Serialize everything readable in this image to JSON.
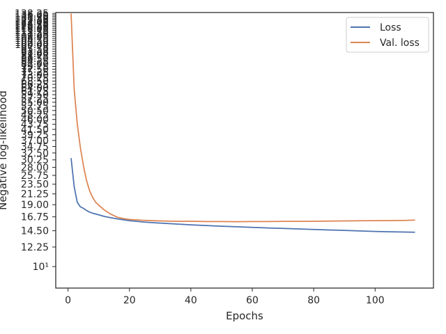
{
  "chart_data": {
    "type": "line",
    "xlabel": "Epochs",
    "ylabel": "Negative log-likelihood",
    "yscale": "log",
    "xlim": [
      -4,
      119
    ],
    "ylim": [
      8.0,
      139.5
    ],
    "xticks": [
      0,
      20,
      40,
      60,
      80,
      100
    ],
    "yticks": [
      {
        "value": 10,
        "label": "10¹"
      },
      {
        "value": 12.25,
        "label": "12.25"
      },
      {
        "value": 14.5,
        "label": "14.50"
      },
      {
        "value": 16.75,
        "label": "16.75"
      },
      {
        "value": 19.0,
        "label": "19.00"
      },
      {
        "value": 21.25,
        "label": "21.25"
      },
      {
        "value": 23.5,
        "label": "23.50"
      },
      {
        "value": 25.75,
        "label": "25.75"
      },
      {
        "value": 28.0,
        "label": "28.00"
      },
      {
        "value": 30.25,
        "label": "30.25"
      },
      {
        "value": 32.5,
        "label": "32.50"
      },
      {
        "value": 34.75,
        "label": "34.75"
      },
      {
        "value": 37.0,
        "label": "37.00"
      },
      {
        "value": 39.25,
        "label": "39.25"
      },
      {
        "value": 41.5,
        "label": "41.50"
      },
      {
        "value": 43.75,
        "label": "43.75"
      },
      {
        "value": 46.0,
        "label": "46.00"
      },
      {
        "value": 48.25,
        "label": "48.25"
      },
      {
        "value": 50.5,
        "label": "50.50"
      },
      {
        "value": 52.75,
        "label": "52.75"
      },
      {
        "value": 55.0,
        "label": "55.00"
      },
      {
        "value": 57.25,
        "label": "57.25"
      },
      {
        "value": 59.5,
        "label": "59.50"
      },
      {
        "value": 61.75,
        "label": "61.75"
      },
      {
        "value": 64.0,
        "label": "64.00"
      },
      {
        "value": 66.25,
        "label": "66.25"
      },
      {
        "value": 68.5,
        "label": "68.50"
      },
      {
        "value": 70.75,
        "label": "70.75"
      },
      {
        "value": 73.0,
        "label": "73.00"
      },
      {
        "value": 75.25,
        "label": "75.25"
      },
      {
        "value": 77.5,
        "label": "77.50"
      },
      {
        "value": 79.75,
        "label": "79.75"
      },
      {
        "value": 82.0,
        "label": "82.00"
      },
      {
        "value": 84.25,
        "label": "84.25"
      },
      {
        "value": 86.5,
        "label": "86.50"
      },
      {
        "value": 88.75,
        "label": "88.75"
      },
      {
        "value": 91.0,
        "label": "91.00"
      },
      {
        "value": 93.25,
        "label": "93.25"
      },
      {
        "value": 95.5,
        "label": "95.50"
      },
      {
        "value": 97.75,
        "label": "97.75"
      },
      {
        "value": 100.0,
        "label": "100.00"
      },
      {
        "value": 102.25,
        "label": "102.25"
      },
      {
        "value": 104.5,
        "label": "104.50"
      },
      {
        "value": 106.75,
        "label": "106.75"
      },
      {
        "value": 109.0,
        "label": "109.00"
      },
      {
        "value": 111.25,
        "label": "111.25"
      },
      {
        "value": 113.5,
        "label": "113.50"
      },
      {
        "value": 115.75,
        "label": "115.75"
      },
      {
        "value": 118.0,
        "label": "118.00"
      },
      {
        "value": 120.25,
        "label": "120.25"
      },
      {
        "value": 122.5,
        "label": "122.50"
      },
      {
        "value": 124.75,
        "label": "124.75"
      },
      {
        "value": 127.0,
        "label": "127.00"
      },
      {
        "value": 129.25,
        "label": "129.25"
      },
      {
        "value": 131.5,
        "label": "131.50"
      },
      {
        "value": 133.75,
        "label": "133.75"
      },
      {
        "value": 136.0,
        "label": "136.00"
      },
      {
        "value": 138.25,
        "label": "138.25"
      }
    ],
    "grid": false,
    "legend_position": "top-right",
    "series": [
      {
        "name": "Loss",
        "color": "#4c72b0",
        "x": [
          1,
          2,
          3,
          4,
          5,
          6,
          7,
          8,
          10,
          12,
          15,
          18,
          20,
          25,
          30,
          35,
          40,
          45,
          50,
          55,
          60,
          65,
          70,
          75,
          80,
          85,
          90,
          95,
          100,
          105,
          110,
          113
        ],
        "y": [
          30.8,
          22.9,
          19.5,
          18.6,
          18.3,
          17.9,
          17.6,
          17.4,
          17.1,
          16.8,
          16.5,
          16.25,
          16.1,
          15.85,
          15.7,
          15.55,
          15.42,
          15.3,
          15.2,
          15.12,
          15.02,
          14.93,
          14.85,
          14.77,
          14.7,
          14.62,
          14.55,
          14.47,
          14.4,
          14.34,
          14.3,
          14.28
        ]
      },
      {
        "name": "Val. loss",
        "color": "#dd8452",
        "x": [
          1,
          2,
          3,
          4,
          5,
          6,
          7,
          8,
          9,
          10,
          12,
          14,
          16,
          18,
          20,
          25,
          30,
          35,
          40,
          45,
          50,
          55,
          60,
          65,
          70,
          75,
          80,
          85,
          90,
          95,
          100,
          105,
          110,
          113
        ],
        "y": [
          138,
          63,
          44,
          34.5,
          28.5,
          24.5,
          22.0,
          20.5,
          19.5,
          18.9,
          17.9,
          17.2,
          16.7,
          16.45,
          16.3,
          16.15,
          16.05,
          16.0,
          16.0,
          15.95,
          15.95,
          15.92,
          15.95,
          15.95,
          15.98,
          15.98,
          16.0,
          16.02,
          16.05,
          16.08,
          16.1,
          16.12,
          16.15,
          16.2
        ]
      }
    ]
  }
}
